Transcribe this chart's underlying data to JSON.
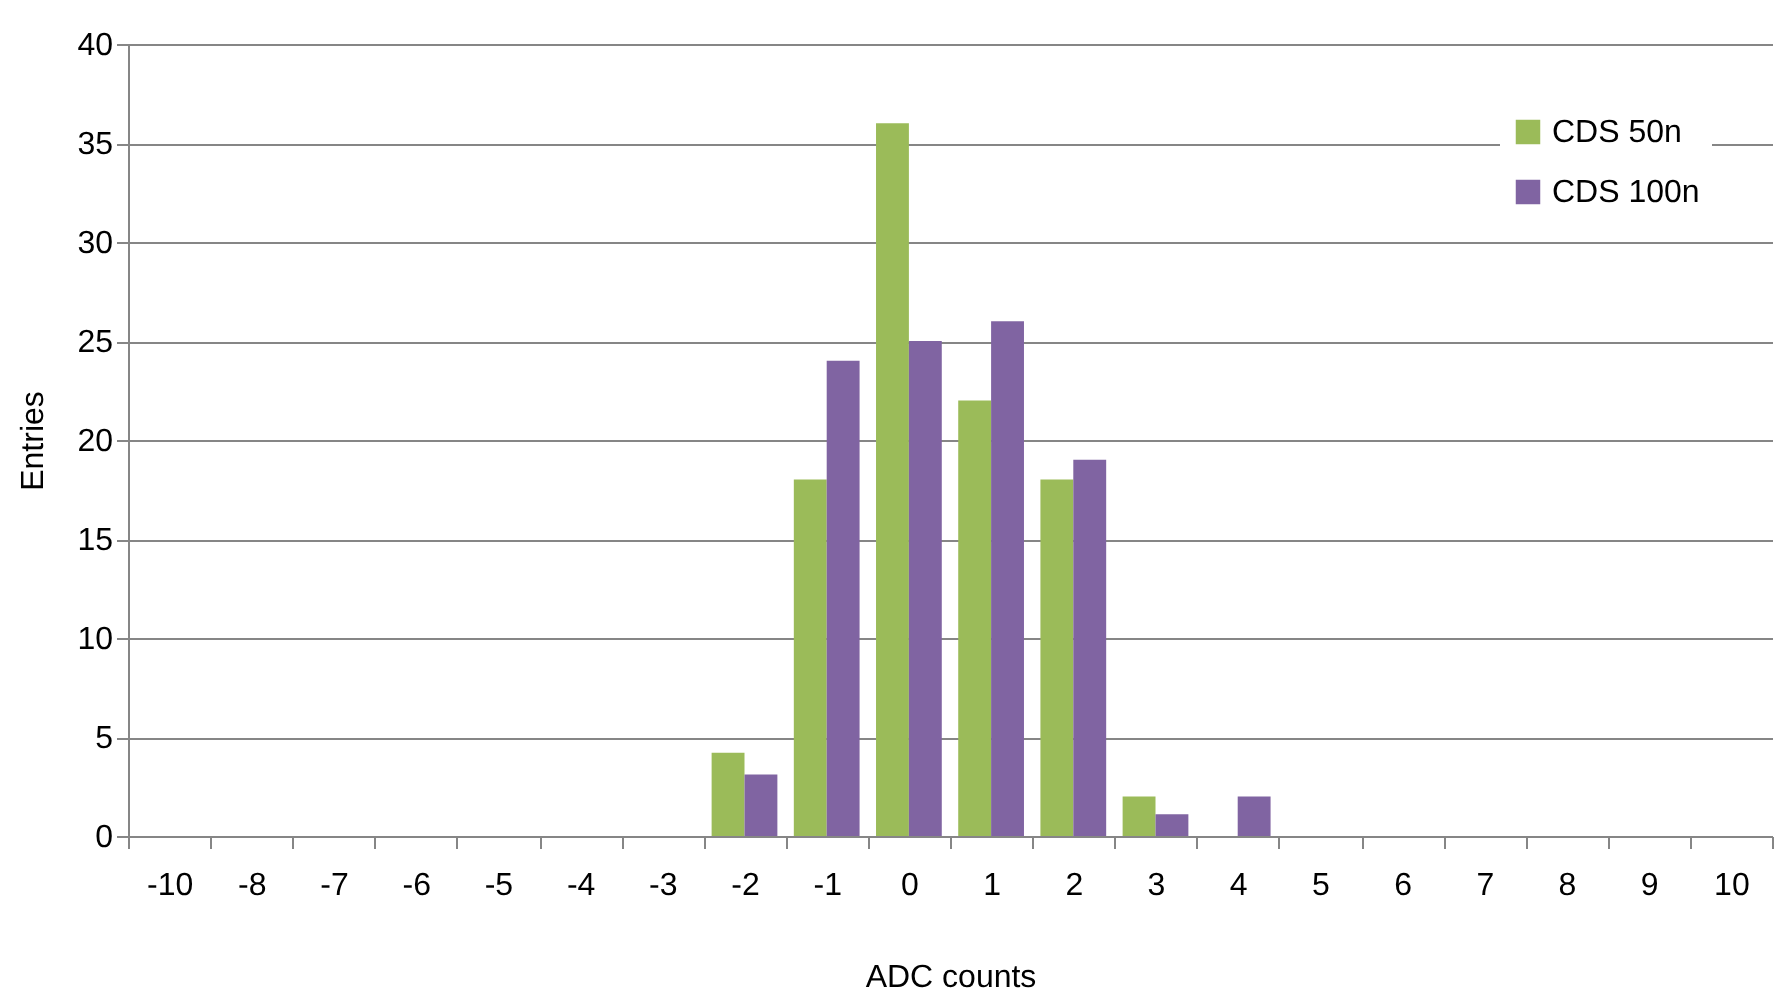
{
  "chart_data": {
    "type": "bar",
    "xlabel": "ADC counts",
    "ylabel": "Entries",
    "categories": [
      "-10",
      "-8",
      "-7",
      "-6",
      "-5",
      "-4",
      "-3",
      "-2",
      "-1",
      "0",
      "1",
      "2",
      "3",
      "4",
      "5",
      "6",
      "7",
      "8",
      "9",
      "10"
    ],
    "series": [
      {
        "name": "CDS 50n",
        "color": "#9bbb59",
        "values": [
          0,
          0,
          0,
          0,
          0,
          0,
          0,
          4.2,
          18,
          36,
          22,
          18,
          2,
          0,
          0,
          0,
          0,
          0,
          0,
          0
        ]
      },
      {
        "name": "CDS 100n",
        "color": "#8064a2",
        "values": [
          0,
          0,
          0,
          0,
          0,
          0,
          0,
          3.1,
          24,
          25,
          26,
          19,
          1.1,
          2,
          0,
          0,
          0,
          0,
          0,
          0
        ]
      }
    ],
    "ylim": [
      0,
      40
    ],
    "yticks": [
      0,
      5,
      10,
      15,
      20,
      25,
      30,
      35,
      40
    ],
    "grid": "y",
    "legend": "top right"
  }
}
